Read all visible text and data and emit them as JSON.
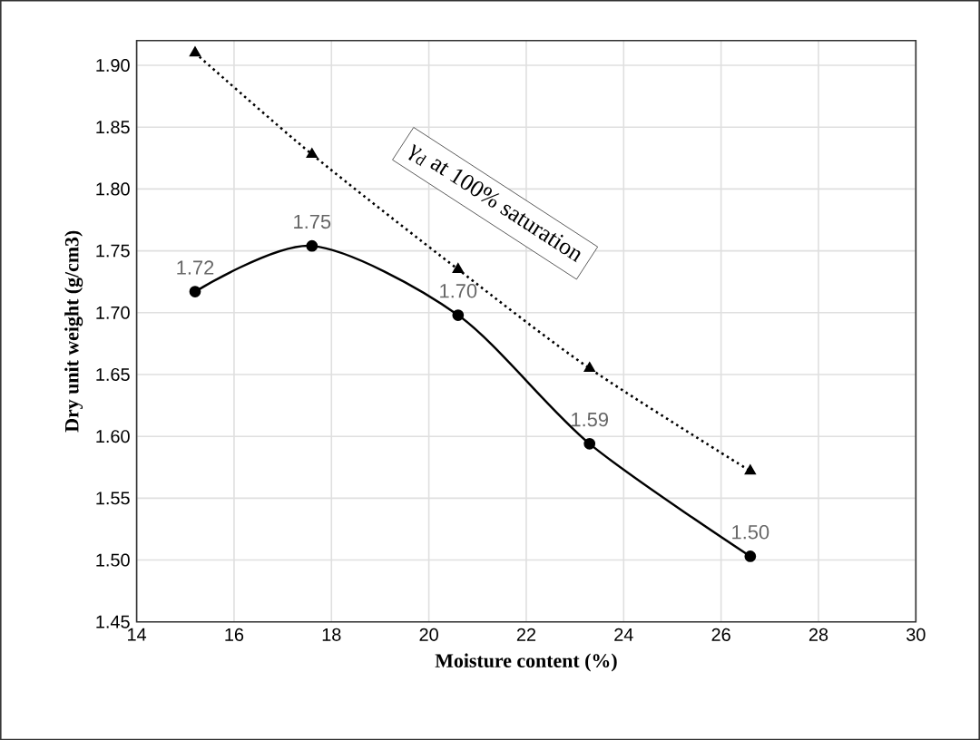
{
  "chart_data": {
    "type": "line",
    "xlabel": "Moisture content (%)",
    "ylabel": "Dry unit weight (g/cm3)",
    "xlim": [
      14,
      30
    ],
    "xticks": [
      14,
      16,
      18,
      20,
      22,
      24,
      26,
      28,
      30
    ],
    "ylim": [
      1.45,
      1.92
    ],
    "yticks": [
      1.45,
      {
        "value": 1.5,
        "label": "1.50"
      },
      1.55,
      {
        "value": 1.6,
        "label": "1.60"
      },
      1.65,
      {
        "value": 1.7,
        "label": "1.70"
      },
      1.75,
      {
        "value": 1.8,
        "label": "1.80"
      },
      1.85,
      {
        "value": 1.9,
        "label": "1.90"
      }
    ],
    "grid": true,
    "annotations": [
      "γ$_{d}$ at 100% saturation"
    ],
    "series": [
      {
        "color": "#000000",
        "marker": "circle",
        "line_style": "solid",
        "x": [
          15.2,
          17.6,
          20.6,
          23.3,
          26.6
        ],
        "values": [
          1.717,
          1.754,
          1.698,
          1.594,
          1.503
        ],
        "value_labels": [
          "1.72",
          "1.75",
          "1.70",
          "1.59",
          "1.50"
        ]
      },
      {
        "color": "#000000",
        "marker": "triangle",
        "line_style": "dotted",
        "x": [
          15.2,
          17.6,
          20.6,
          23.3,
          26.6
        ],
        "values": [
          1.91,
          1.828,
          1.735,
          1.655,
          1.572
        ]
      }
    ]
  }
}
